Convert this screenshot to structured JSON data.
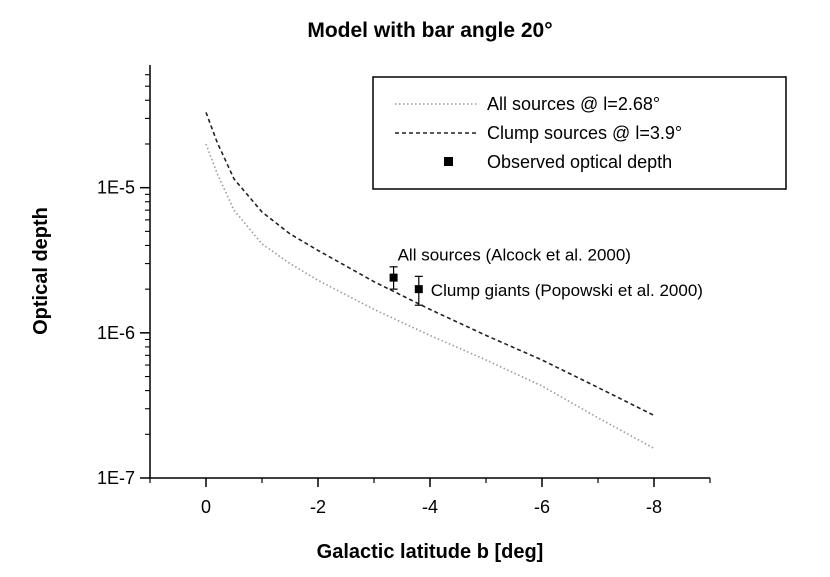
{
  "chart_data": {
    "type": "line",
    "title": "Model with bar angle 20°",
    "xlabel": "Galactic latitude b [deg]",
    "ylabel": "Optical depth",
    "x_ticks": [
      0,
      -2,
      -4,
      -6,
      -8
    ],
    "x_tick_labels": [
      "0",
      "-2",
      "-4",
      "-6",
      "-8"
    ],
    "y_ticks": [
      1e-07,
      1e-06,
      1e-05
    ],
    "y_tick_labels": [
      "1E-7",
      "1E-6",
      "1E-5"
    ],
    "xlim": [
      1,
      -9
    ],
    "ylim": [
      1e-07,
      7e-05
    ],
    "yscale": "log",
    "grid": false,
    "legend_position": "top-right",
    "legend": [
      {
        "label": "All sources @ l=2.68°",
        "style": "dotted",
        "color": "#9a9a9a"
      },
      {
        "label": "Clump sources @ l=3.9°",
        "style": "dashed",
        "color": "#222222"
      },
      {
        "label": "Observed optical depth",
        "style": "marker",
        "color": "#000000"
      }
    ],
    "series": [
      {
        "name": "All sources @ l=2.68°",
        "style": "dotted",
        "color": "#9a9a9a",
        "x": [
          0,
          -0.2,
          -0.5,
          -1,
          -1.5,
          -2,
          -3,
          -4,
          -5,
          -6,
          -7,
          -8
        ],
        "y": [
          2e-05,
          1.25e-05,
          7e-06,
          4.1e-06,
          3e-06,
          2.3e-06,
          1.45e-06,
          9.6e-07,
          6.5e-07,
          4.3e-07,
          2.6e-07,
          1.6e-07
        ]
      },
      {
        "name": "Clump sources @ l=3.9°",
        "style": "dashed",
        "color": "#222222",
        "x": [
          0,
          -0.2,
          -0.5,
          -1,
          -1.5,
          -2,
          -3,
          -4,
          -5,
          -6,
          -7,
          -8
        ],
        "y": [
          3.3e-05,
          2.05e-05,
          1.15e-05,
          6.8e-06,
          4.8e-06,
          3.7e-06,
          2.25e-06,
          1.45e-06,
          9.6e-07,
          6.5e-07,
          4.2e-07,
          2.7e-07
        ]
      }
    ],
    "observations": [
      {
        "label": "All sources (Alcock et al. 2000)",
        "x": -3.35,
        "y": 2.4e-06,
        "y_low": 2e-06,
        "y_high": 2.85e-06
      },
      {
        "label": "Clump giants (Popowski et al. 2000)",
        "x": -3.8,
        "y": 2e-06,
        "y_low": 1.55e-06,
        "y_high": 2.45e-06
      }
    ]
  }
}
